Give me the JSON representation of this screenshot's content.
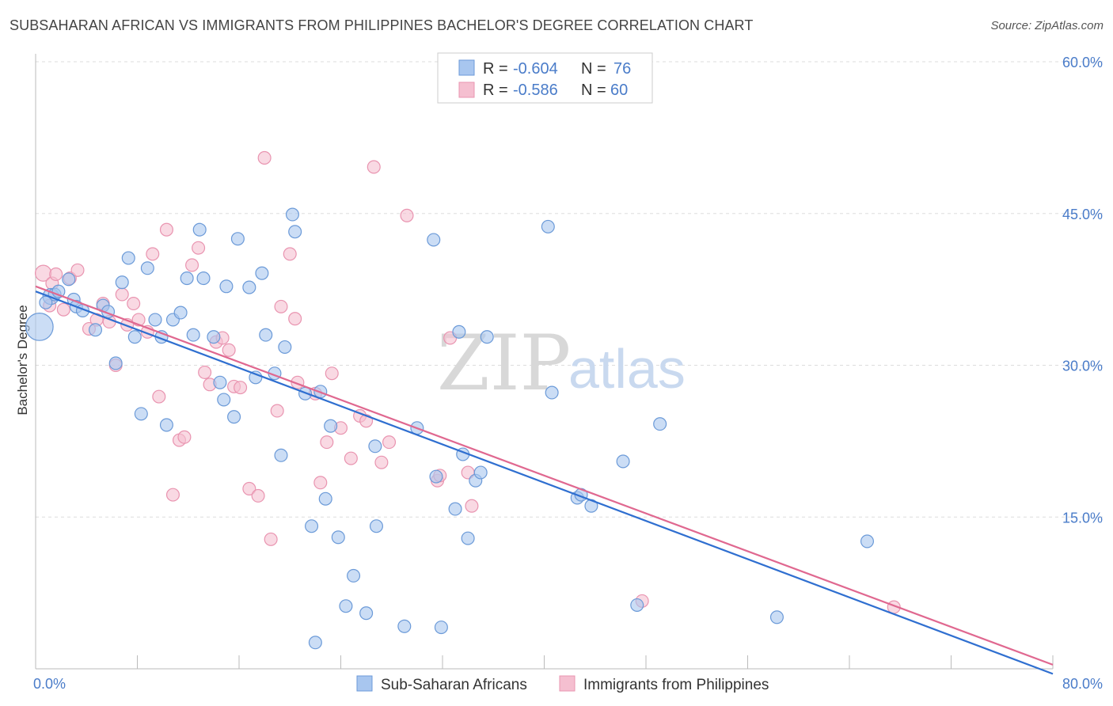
{
  "title": "SUBSAHARAN AFRICAN VS IMMIGRANTS FROM PHILIPPINES BACHELOR'S DEGREE CORRELATION CHART",
  "source": "Source: ZipAtlas.com",
  "watermark": {
    "zip": "ZIP",
    "atlas": "atlas"
  },
  "legend": {
    "blue": {
      "r_label": "R =",
      "r_value": "-0.604",
      "n_label": "N =",
      "n_value": "76"
    },
    "pink": {
      "r_label": "R =",
      "r_value": "-0.586",
      "n_label": "N =",
      "n_value": "60"
    }
  },
  "bottom_legend": {
    "blue": "Sub-Saharan Africans",
    "pink": "Immigrants from Philippines"
  },
  "colors": {
    "blue_fill": "#a8c6ef",
    "blue_stroke": "#6b9ad8",
    "blue_line": "#2f6fd0",
    "pink_fill": "#f5bfd0",
    "pink_stroke": "#e994b0",
    "pink_line": "#e06890",
    "tick": "#4a7cc9",
    "grid": "#dddddd"
  },
  "chart_data": {
    "type": "scatter",
    "title": "SUBSAHARAN AFRICAN VS IMMIGRANTS FROM PHILIPPINES BACHELOR'S DEGREE CORRELATION CHART",
    "xlabel": "",
    "ylabel": "Bachelor's Degree",
    "xlim": [
      0,
      80
    ],
    "ylim": [
      0,
      60
    ],
    "x_tick_labels": [
      "0.0%",
      "80.0%"
    ],
    "y_tick_labels": [
      "15.0%",
      "30.0%",
      "45.0%",
      "60.0%"
    ],
    "y_ticks": [
      15,
      30,
      45,
      60
    ],
    "grid": true,
    "legend_placement": "top-center",
    "series": [
      {
        "name": "Sub-Saharan Africans",
        "color": "#a8c6ef",
        "trend": {
          "x": [
            0,
            80
          ],
          "y": [
            37.3,
            -0.5
          ]
        },
        "points": [
          [
            0.3,
            33.8
          ],
          [
            1.2,
            36.8
          ],
          [
            1.5,
            37.0
          ],
          [
            1.8,
            37.3
          ],
          [
            2.6,
            38.5
          ],
          [
            3.0,
            36.5
          ],
          [
            3.2,
            35.8
          ],
          [
            3.7,
            35.4
          ],
          [
            4.7,
            33.5
          ],
          [
            5.3,
            35.9
          ],
          [
            5.7,
            35.3
          ],
          [
            6.3,
            30.2
          ],
          [
            6.8,
            38.2
          ],
          [
            7.3,
            40.6
          ],
          [
            7.8,
            32.8
          ],
          [
            8.3,
            25.2
          ],
          [
            8.8,
            39.6
          ],
          [
            9.4,
            34.5
          ],
          [
            9.9,
            32.8
          ],
          [
            10.3,
            24.1
          ],
          [
            10.8,
            34.5
          ],
          [
            11.4,
            35.2
          ],
          [
            11.9,
            38.6
          ],
          [
            12.4,
            33.0
          ],
          [
            12.9,
            43.4
          ],
          [
            13.2,
            38.6
          ],
          [
            14.0,
            32.8
          ],
          [
            14.5,
            28.3
          ],
          [
            14.8,
            26.6
          ],
          [
            15.0,
            37.8
          ],
          [
            15.6,
            24.9
          ],
          [
            15.9,
            42.5
          ],
          [
            16.8,
            37.7
          ],
          [
            17.3,
            28.8
          ],
          [
            17.8,
            39.1
          ],
          [
            18.1,
            33.0
          ],
          [
            18.8,
            29.2
          ],
          [
            19.3,
            21.1
          ],
          [
            19.6,
            31.8
          ],
          [
            20.2,
            44.9
          ],
          [
            20.4,
            43.2
          ],
          [
            21.2,
            27.2
          ],
          [
            21.7,
            14.1
          ],
          [
            22.0,
            2.6
          ],
          [
            22.4,
            27.4
          ],
          [
            22.8,
            16.8
          ],
          [
            23.2,
            24.0
          ],
          [
            23.8,
            13.0
          ],
          [
            24.4,
            6.2
          ],
          [
            25.0,
            9.2
          ],
          [
            26.0,
            5.5
          ],
          [
            26.7,
            22.0
          ],
          [
            26.8,
            14.1
          ],
          [
            29.0,
            4.2
          ],
          [
            30.0,
            23.8
          ],
          [
            31.3,
            42.4
          ],
          [
            31.5,
            19.0
          ],
          [
            31.9,
            4.1
          ],
          [
            33.0,
            15.8
          ],
          [
            33.3,
            33.3
          ],
          [
            33.6,
            21.2
          ],
          [
            34.0,
            12.9
          ],
          [
            34.6,
            18.6
          ],
          [
            35.0,
            19.4
          ],
          [
            35.5,
            32.8
          ],
          [
            40.3,
            43.7
          ],
          [
            40.6,
            27.3
          ],
          [
            42.6,
            16.9
          ],
          [
            42.9,
            17.2
          ],
          [
            43.7,
            16.1
          ],
          [
            46.2,
            20.5
          ],
          [
            47.3,
            6.3
          ],
          [
            49.1,
            24.2
          ],
          [
            58.3,
            5.1
          ],
          [
            65.4,
            12.6
          ],
          [
            0.8,
            36.2
          ]
        ],
        "sizes": [
          24,
          14,
          11,
          11,
          11,
          11,
          11,
          11,
          11,
          11,
          11,
          11,
          11,
          11,
          11,
          11,
          11,
          11,
          11,
          11,
          11,
          11,
          11,
          11,
          11,
          11,
          11,
          11,
          11,
          11,
          11,
          11,
          11,
          11,
          11,
          11,
          11,
          11,
          11,
          11,
          11,
          11,
          11,
          11,
          11,
          11,
          11,
          11,
          11,
          11,
          11,
          11,
          11,
          11,
          11,
          11,
          11,
          11,
          11,
          11,
          11,
          11,
          11,
          11,
          11,
          11,
          11,
          11,
          11,
          11,
          11,
          11,
          11,
          11,
          11,
          11
        ]
      },
      {
        "name": "Immigrants from Philippines",
        "color": "#f5bfd0",
        "trend": {
          "x": [
            0,
            80
          ],
          "y": [
            37.8,
            0.4
          ]
        },
        "points": [
          [
            0.6,
            39.1
          ],
          [
            1.1,
            35.9
          ],
          [
            1.3,
            38.1
          ],
          [
            1.6,
            39.0
          ],
          [
            2.2,
            35.5
          ],
          [
            2.7,
            38.6
          ],
          [
            3.3,
            39.4
          ],
          [
            4.2,
            33.6
          ],
          [
            4.8,
            34.5
          ],
          [
            5.3,
            36.1
          ],
          [
            5.8,
            34.3
          ],
          [
            6.3,
            30.0
          ],
          [
            6.8,
            37.0
          ],
          [
            7.2,
            34.0
          ],
          [
            7.7,
            36.1
          ],
          [
            8.1,
            34.5
          ],
          [
            8.8,
            33.3
          ],
          [
            9.2,
            41.0
          ],
          [
            9.7,
            26.9
          ],
          [
            10.3,
            43.4
          ],
          [
            10.8,
            17.2
          ],
          [
            11.3,
            22.6
          ],
          [
            11.7,
            22.9
          ],
          [
            12.3,
            39.9
          ],
          [
            12.8,
            41.6
          ],
          [
            13.3,
            29.3
          ],
          [
            13.7,
            28.1
          ],
          [
            14.2,
            32.3
          ],
          [
            14.7,
            32.7
          ],
          [
            15.2,
            31.5
          ],
          [
            15.6,
            27.9
          ],
          [
            16.1,
            27.8
          ],
          [
            16.8,
            17.8
          ],
          [
            17.5,
            17.1
          ],
          [
            18.0,
            50.5
          ],
          [
            18.5,
            12.8
          ],
          [
            19.0,
            25.5
          ],
          [
            19.3,
            35.8
          ],
          [
            20.0,
            41.0
          ],
          [
            20.4,
            34.6
          ],
          [
            20.6,
            28.3
          ],
          [
            22.0,
            27.2
          ],
          [
            22.4,
            18.4
          ],
          [
            22.9,
            22.4
          ],
          [
            23.3,
            29.2
          ],
          [
            24.0,
            23.8
          ],
          [
            24.8,
            20.8
          ],
          [
            25.5,
            25.0
          ],
          [
            26.0,
            24.5
          ],
          [
            26.6,
            49.6
          ],
          [
            27.2,
            20.4
          ],
          [
            27.8,
            22.4
          ],
          [
            29.2,
            44.8
          ],
          [
            31.6,
            18.6
          ],
          [
            31.8,
            19.1
          ],
          [
            32.6,
            32.7
          ],
          [
            34.0,
            19.4
          ],
          [
            34.3,
            16.1
          ],
          [
            47.7,
            6.7
          ],
          [
            67.5,
            6.1
          ]
        ],
        "sizes": [
          14,
          11,
          11,
          11,
          11,
          11,
          11,
          11,
          11,
          11,
          11,
          11,
          11,
          11,
          11,
          11,
          11,
          11,
          11,
          11,
          11,
          11,
          11,
          11,
          11,
          11,
          11,
          11,
          11,
          11,
          11,
          11,
          11,
          11,
          11,
          11,
          11,
          11,
          11,
          11,
          11,
          11,
          11,
          11,
          11,
          11,
          11,
          11,
          11,
          11,
          11,
          11,
          11,
          11,
          11,
          11,
          11,
          11,
          11,
          11
        ]
      }
    ]
  }
}
